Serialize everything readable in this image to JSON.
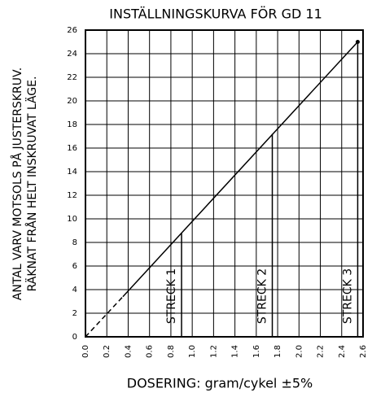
{
  "chart_data": {
    "type": "line",
    "title": "INSTÄLLNINGSKURVA FÖR GD 11",
    "y_label_lines": [
      "ANTAL VARV MOTSOLS PÅ JUSTERSKRUV.",
      "RÄKNAT FRÅN HELT INSKRUVAT LÄGE."
    ],
    "x_label": "DOSERING: gram/cykel  ±5%",
    "series": [
      {
        "color": "#000000",
        "style": "dashed",
        "x": [
          0,
          0.35
        ],
        "values": [
          0,
          3.4
        ]
      },
      {
        "color": "#000000",
        "style": "solid",
        "x": [
          0.35,
          2.55
        ],
        "values": [
          3.4,
          25
        ]
      }
    ],
    "end_point": {
      "x": 2.55,
      "y": 25
    },
    "annotations": [
      {
        "label": "STRECK 1",
        "x": 0.9,
        "y": 8.8
      },
      {
        "label": "STRECK 2",
        "x": 1.75,
        "y": 17.2
      },
      {
        "label": "STRECK 3",
        "x": 2.55,
        "y": 25
      }
    ],
    "xlim": [
      0,
      2.6
    ],
    "ylim": [
      0,
      26
    ],
    "xticks": [
      {
        "value": 0,
        "label": "0.0"
      },
      0.2,
      0.4,
      0.6,
      0.8,
      {
        "value": 1,
        "label": "1.0"
      },
      1.2,
      1.4,
      1.6,
      1.8,
      {
        "value": 2,
        "label": "2.0"
      },
      2.2,
      2.4,
      2.6
    ],
    "yticks": [
      0,
      2,
      4,
      6,
      8,
      10,
      12,
      14,
      16,
      18,
      20,
      22,
      24,
      26
    ],
    "grid": true
  }
}
